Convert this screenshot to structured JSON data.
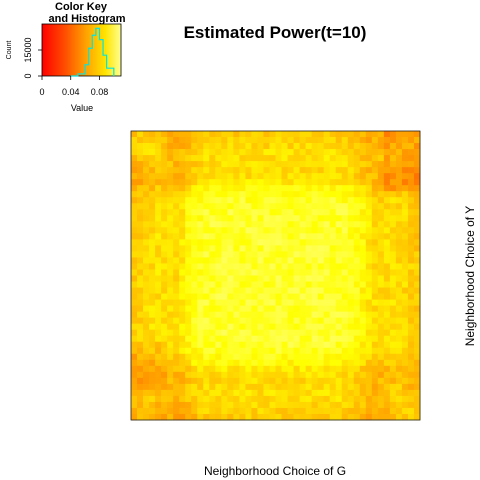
{
  "chart_data": {
    "type": "heatmap",
    "title": "Estimated Power(t=10)",
    "xlabel": "Neighborhood Choice of G",
    "ylabel": "Neighborhood Choice of Y",
    "color_scale": [
      "#ff0000",
      "#ff4000",
      "#ff7f00",
      "#ffbf00",
      "#ffff00",
      "#ffff80"
    ],
    "value_range": [
      0,
      0.11
    ],
    "grid": false,
    "legend_placement": "top-left",
    "color_key": {
      "title_line1": "Color Key",
      "title_line2": "and Histogram",
      "xlabel": "Value",
      "ylabel": "Count",
      "x_ticks": [
        "0",
        "0.04",
        "0.08"
      ],
      "x_tick_values": [
        0,
        0.04,
        0.08
      ],
      "y_ticks": [
        "0",
        "15000"
      ],
      "y_tick_values": [
        0,
        15000
      ],
      "y_max": 30000,
      "histogram_color": "#00e5e5",
      "histogram_bins": [
        0.04,
        0.05,
        0.06,
        0.065,
        0.07,
        0.075,
        0.08,
        0.085,
        0.09,
        0.1
      ],
      "histogram_counts": [
        0,
        1200,
        6500,
        16000,
        23500,
        27500,
        21000,
        12000,
        4500,
        0
      ]
    }
  }
}
